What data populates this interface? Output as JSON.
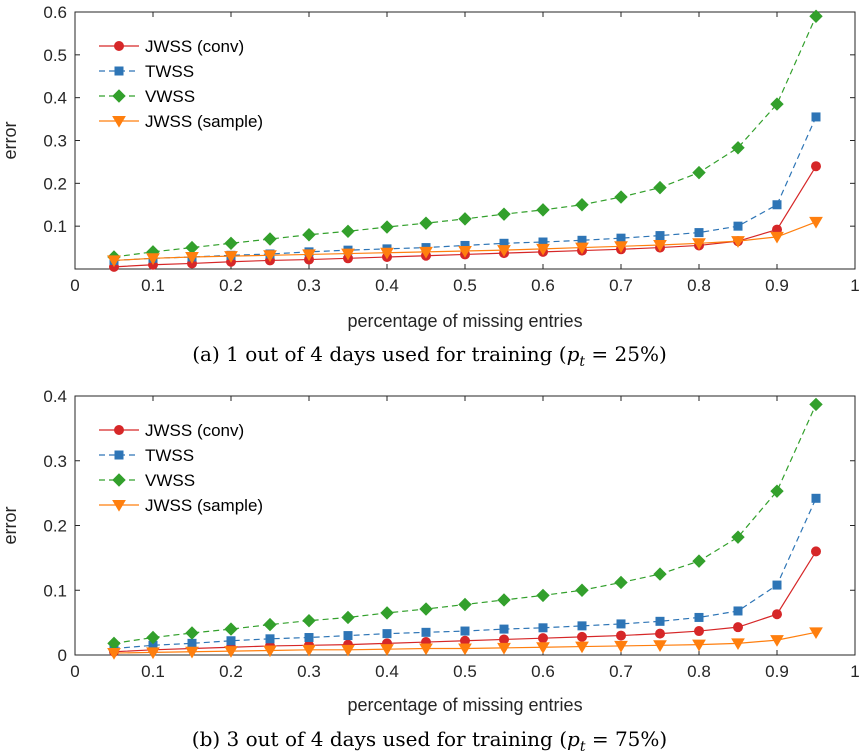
{
  "chart_data": [
    {
      "type": "line",
      "caption": {
        "prefix": "(a) 1 out of 4 days used for training (",
        "var": "p",
        "sub": "t",
        "suffix": " = 25%)"
      },
      "xlabel": "percentage of missing entries",
      "ylabel": "error",
      "xlim": [
        0,
        1
      ],
      "ylim": [
        0,
        0.6
      ],
      "xticks": [
        "0",
        "0.1",
        "0.2",
        "0.3",
        "0.4",
        "0.5",
        "0.6",
        "0.7",
        "0.8",
        "0.9",
        "1"
      ],
      "yticks": [
        "0.1",
        "0.2",
        "0.3",
        "0.4",
        "0.5",
        "0.6"
      ],
      "legend_position": "top-left",
      "x": [
        0.05,
        0.1,
        0.15,
        0.2,
        0.25,
        0.3,
        0.35,
        0.4,
        0.45,
        0.5,
        0.55,
        0.6,
        0.65,
        0.7,
        0.75,
        0.8,
        0.85,
        0.9,
        0.95
      ],
      "series": [
        {
          "name": "JWSS (conv)",
          "color": "#d62728",
          "marker": "circle",
          "dash": "",
          "values": [
            0.005,
            0.01,
            0.013,
            0.017,
            0.02,
            0.022,
            0.025,
            0.028,
            0.031,
            0.034,
            0.037,
            0.04,
            0.043,
            0.046,
            0.05,
            0.055,
            0.065,
            0.092,
            0.24
          ]
        },
        {
          "name": "TWSS",
          "color": "#2e75b6",
          "marker": "square",
          "dash": "6,4",
          "values": [
            0.02,
            0.025,
            0.028,
            0.032,
            0.035,
            0.04,
            0.044,
            0.047,
            0.05,
            0.055,
            0.06,
            0.063,
            0.067,
            0.072,
            0.078,
            0.085,
            0.1,
            0.15,
            0.355
          ]
        },
        {
          "name": "VWSS",
          "color": "#33a02c",
          "marker": "diamond",
          "dash": "6,4",
          "values": [
            0.028,
            0.04,
            0.05,
            0.06,
            0.07,
            0.08,
            0.088,
            0.098,
            0.107,
            0.117,
            0.128,
            0.138,
            0.15,
            0.168,
            0.19,
            0.225,
            0.283,
            0.385,
            0.59
          ]
        },
        {
          "name": "JWSS (sample)",
          "color": "#ff7f0e",
          "marker": "triangle-down",
          "dash": "",
          "values": [
            0.02,
            0.025,
            0.028,
            0.03,
            0.032,
            0.034,
            0.036,
            0.038,
            0.04,
            0.042,
            0.044,
            0.047,
            0.05,
            0.053,
            0.056,
            0.06,
            0.065,
            0.075,
            0.11
          ]
        }
      ]
    },
    {
      "type": "line",
      "caption": {
        "prefix": "(b) 3 out of 4 days used for training (",
        "var": "p",
        "sub": "t",
        "suffix": " = 75%)"
      },
      "xlabel": "percentage of missing entries",
      "ylabel": "error",
      "xlim": [
        0,
        1
      ],
      "ylim": [
        0,
        0.4
      ],
      "xticks": [
        "0",
        "0.1",
        "0.2",
        "0.3",
        "0.4",
        "0.5",
        "0.6",
        "0.7",
        "0.8",
        "0.9",
        "1"
      ],
      "yticks": [
        "0",
        "0.1",
        "0.2",
        "0.3",
        "0.4"
      ],
      "legend_position": "top-left",
      "x": [
        0.05,
        0.1,
        0.15,
        0.2,
        0.25,
        0.3,
        0.35,
        0.4,
        0.45,
        0.5,
        0.55,
        0.6,
        0.65,
        0.7,
        0.75,
        0.8,
        0.85,
        0.9,
        0.95
      ],
      "series": [
        {
          "name": "JWSS (conv)",
          "color": "#d62728",
          "marker": "circle",
          "dash": "",
          "values": [
            0.005,
            0.008,
            0.01,
            0.012,
            0.014,
            0.015,
            0.016,
            0.018,
            0.02,
            0.022,
            0.024,
            0.026,
            0.028,
            0.03,
            0.033,
            0.037,
            0.043,
            0.063,
            0.16
          ]
        },
        {
          "name": "TWSS",
          "color": "#2e75b6",
          "marker": "square",
          "dash": "6,4",
          "values": [
            0.01,
            0.015,
            0.018,
            0.022,
            0.025,
            0.027,
            0.03,
            0.033,
            0.035,
            0.037,
            0.04,
            0.042,
            0.045,
            0.048,
            0.052,
            0.058,
            0.068,
            0.108,
            0.242
          ]
        },
        {
          "name": "VWSS",
          "color": "#33a02c",
          "marker": "diamond",
          "dash": "6,4",
          "values": [
            0.018,
            0.027,
            0.034,
            0.04,
            0.047,
            0.053,
            0.058,
            0.065,
            0.071,
            0.078,
            0.085,
            0.092,
            0.1,
            0.112,
            0.125,
            0.145,
            0.182,
            0.253,
            0.387
          ]
        },
        {
          "name": "JWSS (sample)",
          "color": "#ff7f0e",
          "marker": "triangle-down",
          "dash": "",
          "values": [
            0.003,
            0.004,
            0.005,
            0.006,
            0.007,
            0.008,
            0.008,
            0.009,
            0.01,
            0.01,
            0.011,
            0.012,
            0.013,
            0.014,
            0.015,
            0.016,
            0.018,
            0.023,
            0.035
          ]
        }
      ]
    }
  ]
}
